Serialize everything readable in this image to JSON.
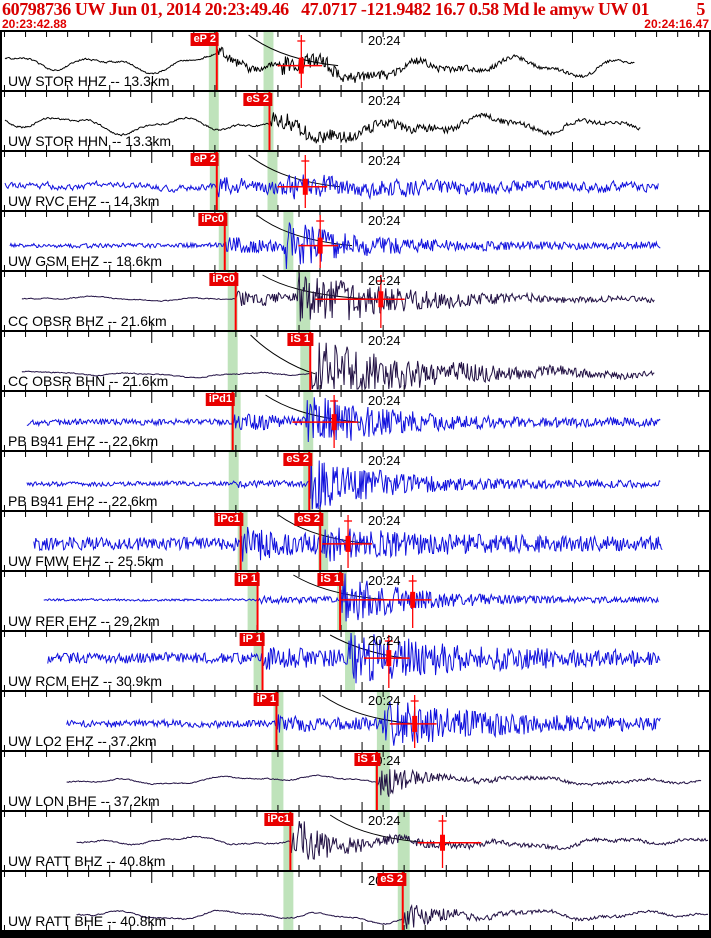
{
  "header": {
    "title": "60798736 UW Jun 01, 2014 20:23:49.46   47.0717 -121.9482 16.7 0.58 Md le amyw UW 01",
    "page": "5",
    "window_start": "20:23:42.88",
    "window_end": "20:24:16.47"
  },
  "time_axis": {
    "major_label": "20:24",
    "major_label_x": 366,
    "tick_origin": 2.5,
    "tick_spacing": 21.155,
    "tick_count": 34,
    "major_tick_indices": [
      7,
      17,
      27
    ]
  },
  "colors": {
    "black_trace": "#000000",
    "blue_trace": "#1111dd",
    "navy_trace": "#221144",
    "pick_red": "#ff0000",
    "pick_box_red": "#e80000",
    "phase_window_green": "#bfe3bb",
    "header_red": "#d80000"
  },
  "traces": [
    {
      "label": "UW STOR HHZ -- 13.3km",
      "time_label": "20:24",
      "color": "#000000",
      "center": 0.58,
      "x_range": [
        3,
        636
      ],
      "wave": {
        "lf": 12,
        "base": 1.6,
        "bursts": [
          [
            216,
            6,
            60
          ],
          [
            280,
            8,
            130
          ]
        ]
      },
      "bands": [
        {
          "x": 208,
          "w": 10
        },
        {
          "x": 263,
          "w": 10
        }
      ],
      "picks": [
        {
          "label": "eP 2",
          "x": 216
        }
      ],
      "curve": [
        248,
        338
      ],
      "marker": {
        "x": 301,
        "line": [
          277,
          322
        ]
      }
    },
    {
      "label": "UW STOR HHN -- 13.3km",
      "time_label": "20:24",
      "color": "#000000",
      "center": 0.58,
      "x_range": [
        3,
        642
      ],
      "wave": {
        "lf": 11,
        "base": 1.8,
        "bursts": [
          [
            269,
            9,
            150
          ]
        ]
      },
      "bands": [
        {
          "x": 208,
          "w": 10
        },
        {
          "x": 263,
          "w": 10
        }
      ],
      "picks": [
        {
          "label": "eS 2",
          "x": 269
        }
      ],
      "curve": null,
      "marker": null
    },
    {
      "label": "UW RVC EHZ -- 14.3km",
      "time_label": "20:24",
      "color": "#1111dd",
      "center": 0.6,
      "x_range": [
        3,
        660
      ],
      "wave": {
        "lf": 2.5,
        "base": 5.5,
        "bursts": [
          [
            216,
            8,
            70
          ],
          [
            280,
            8,
            220
          ]
        ]
      },
      "bands": [
        {
          "x": 209,
          "w": 10
        },
        {
          "x": 267,
          "w": 10
        }
      ],
      "picks": [
        {
          "label": "eP 2",
          "x": 216
        }
      ],
      "curve": [
        248,
        340
      ],
      "marker": {
        "x": 305,
        "line": [
          277,
          327
        ]
      }
    },
    {
      "label": "UW GSM EHZ -- 18.6km",
      "time_label": "20:24",
      "color": "#1111dd",
      "center": 0.58,
      "x_range": [
        8,
        662
      ],
      "wave": {
        "lf": 0.6,
        "base": 2.2,
        "bursts": [
          [
            224,
            8,
            60
          ],
          [
            283,
            20,
            55
          ],
          [
            283,
            4,
            300
          ]
        ]
      },
      "bands": [
        {
          "x": 218,
          "w": 10
        },
        {
          "x": 283,
          "w": 10
        }
      ],
      "picks": [
        {
          "label": "iPc0",
          "x": 224
        }
      ],
      "curve": [
        256,
        352
      ],
      "marker": {
        "x": 320,
        "line": [
          298,
          338
        ]
      }
    },
    {
      "label": "CC OBSR BHZ -- 21.6km",
      "time_label": "20:24",
      "color": "#221144",
      "center": 0.47,
      "x_range": [
        20,
        656
      ],
      "wave": {
        "lf": 2.6,
        "base": 0.9,
        "bursts": [
          [
            235,
            9,
            80
          ],
          [
            297,
            24,
            80
          ],
          [
            297,
            5,
            300
          ]
        ]
      },
      "bands": [
        {
          "x": 227,
          "w": 10
        },
        {
          "x": 296,
          "w": 14
        }
      ],
      "picks": [
        {
          "label": "iPc0",
          "x": 235
        }
      ],
      "curve": [
        262,
        372
      ],
      "marker": {
        "x": 381,
        "line": [
          315,
          405
        ]
      }
    },
    {
      "label": "CC OBSR BHN -- 21.6km",
      "time_label": "20:24",
      "color": "#221144",
      "center": 0.72,
      "x_range": [
        20,
        656
      ],
      "wave": {
        "lf": 3,
        "base": 0.9,
        "bursts": [
          [
            310,
            30,
            100
          ],
          [
            310,
            5,
            300
          ]
        ]
      },
      "bands": [
        {
          "x": 227,
          "w": 10
        },
        {
          "x": 300,
          "w": 10
        }
      ],
      "picks": [
        {
          "label": "iS 1",
          "x": 310
        }
      ],
      "curve": [
        250,
        315
      ],
      "marker": null
    },
    {
      "label": "PB B941 EHZ -- 22.6km",
      "time_label": "20:24",
      "color": "#1111dd",
      "center": 0.52,
      "x_range": [
        25,
        662
      ],
      "wave": {
        "lf": 0.5,
        "base": 3,
        "bursts": [
          [
            232,
            7,
            80
          ],
          [
            305,
            24,
            60
          ],
          [
            305,
            4,
            300
          ]
        ]
      },
      "bands": [
        {
          "x": 230,
          "w": 10
        },
        {
          "x": 303,
          "w": 10
        }
      ],
      "picks": [
        {
          "label": "iPd1",
          "x": 232
        }
      ],
      "curve": [
        265,
        360
      ],
      "marker": {
        "x": 334,
        "line": [
          292,
          358
        ]
      }
    },
    {
      "label": "PB B941 EH2 -- 22.6km",
      "time_label": "20:24",
      "color": "#1111dd",
      "center": 0.55,
      "x_range": [
        25,
        662
      ],
      "wave": {
        "lf": 0.5,
        "base": 2.2,
        "bursts": [
          [
            232,
            2,
            80
          ],
          [
            309,
            28,
            55
          ],
          [
            309,
            4,
            300
          ]
        ]
      },
      "bands": [
        {
          "x": 228,
          "w": 10
        },
        {
          "x": 303,
          "w": 10
        }
      ],
      "picks": [
        {
          "label": "eS 2",
          "x": 309
        }
      ],
      "curve": null,
      "marker": null
    },
    {
      "label": "UW FMW EHZ -- 25.5km",
      "time_label": "20:24",
      "color": "#1111dd",
      "center": 0.55,
      "x_range": [
        32,
        664
      ],
      "wave": {
        "lf": 0.5,
        "base": 6.5,
        "bursts": [
          [
            240,
            13,
            60
          ],
          [
            320,
            9,
            150
          ]
        ]
      },
      "bands": [
        {
          "x": 237,
          "w": 10
        },
        {
          "x": 318,
          "w": 10
        }
      ],
      "picks": [
        {
          "label": "iPc1",
          "x": 240
        },
        {
          "label": "eS 2",
          "x": 320
        }
      ],
      "curve": [
        278,
        372
      ],
      "marker": {
        "x": 348,
        "line": [
          322,
          372
        ]
      }
    },
    {
      "label": "UW RER EHZ -- 29.2km",
      "time_label": "20:24",
      "color": "#1111dd",
      "center": 0.48,
      "x_range": [
        42,
        660
      ],
      "wave": {
        "lf": 0.3,
        "base": 1.1,
        "bursts": [
          [
            257,
            3,
            150
          ],
          [
            340,
            22,
            55
          ],
          [
            340,
            4,
            250
          ]
        ]
      },
      "bands": [
        {
          "x": 247,
          "w": 10
        },
        {
          "x": 337,
          "w": 10
        }
      ],
      "picks": [
        {
          "label": "iP 1",
          "x": 257
        },
        {
          "label": "iS 1",
          "x": 340
        }
      ],
      "curve": [
        293,
        388
      ],
      "marker": {
        "x": 413,
        "line": [
          340,
          432
        ]
      }
    },
    {
      "label": "UW RCM EHZ -- 30.9km",
      "time_label": "20:24",
      "color": "#1111dd",
      "center": 0.45,
      "x_range": [
        46,
        662
      ],
      "wave": {
        "lf": 0.8,
        "base": 5.5,
        "bursts": [
          [
            262,
            7,
            90
          ],
          [
            348,
            20,
            140
          ]
        ]
      },
      "bands": [
        {
          "x": 253,
          "w": 10
        },
        {
          "x": 345,
          "w": 10
        }
      ],
      "picks": [
        {
          "label": "iP 1",
          "x": 262
        }
      ],
      "curve": [
        330,
        405
      ],
      "marker": {
        "x": 389,
        "line": [
          364,
          410
        ]
      }
    },
    {
      "label": "UW LO2 EHZ -- 37.2km",
      "time_label": "20:24",
      "color": "#1111dd",
      "center": 0.55,
      "x_range": [
        65,
        662
      ],
      "wave": {
        "lf": 0.5,
        "base": 3.5,
        "bursts": [
          [
            276,
            6,
            100
          ],
          [
            380,
            18,
            80
          ],
          [
            380,
            5,
            400
          ]
        ]
      },
      "bands": [
        {
          "x": 273,
          "w": 10
        },
        {
          "x": 377,
          "w": 13
        }
      ],
      "picks": [
        {
          "label": "iP 1",
          "x": 276
        }
      ],
      "curve": [
        322,
        415
      ],
      "marker": {
        "x": 415,
        "line": [
          390,
          437
        ]
      }
    },
    {
      "label": "UW LON BHE -- 37.2km",
      "time_label": "20:24",
      "color": "#221144",
      "center": 0.48,
      "x_range": [
        65,
        703
      ],
      "wave": {
        "lf": 4.5,
        "base": 1.0,
        "bursts": [
          [
            377,
            20,
            22
          ],
          [
            377,
            4,
            150
          ]
        ]
      },
      "bands": [
        {
          "x": 271,
          "w": 12
        },
        {
          "x": 375,
          "w": 15
        }
      ],
      "picks": [
        {
          "label": "iS 1",
          "x": 377
        }
      ],
      "curve": null,
      "marker": null
    },
    {
      "label": "UW RATT BHZ -- 40.8km",
      "time_label": "20:24",
      "color": "#221144",
      "center": 0.53,
      "x_range": [
        75,
        710
      ],
      "wave": {
        "lf": 5,
        "base": 1.3,
        "bursts": [
          [
            290,
            22,
            35
          ],
          [
            290,
            5,
            220
          ]
        ]
      },
      "bands": [
        {
          "x": 283,
          "w": 10
        },
        {
          "x": 398,
          "w": 12
        }
      ],
      "picks": [
        {
          "label": "iPc1",
          "x": 290
        }
      ],
      "curve": [
        330,
        428
      ],
      "marker": {
        "x": 443,
        "line": [
          418,
          482
        ]
      }
    },
    {
      "label": "UW RATT BHE -- 40.8km",
      "time_label": "20:24",
      "color": "#221144",
      "center": 0.75,
      "x_range": [
        75,
        710
      ],
      "wave": {
        "lf": 6,
        "base": 1.1,
        "bursts": [
          [
            403,
            15,
            28
          ],
          [
            403,
            3,
            160
          ]
        ]
      },
      "bands": [
        {
          "x": 283,
          "w": 10
        },
        {
          "x": 398,
          "w": 12
        }
      ],
      "picks": [
        {
          "label": "eS 2",
          "x": 403
        }
      ],
      "curve": null,
      "marker": null
    }
  ]
}
